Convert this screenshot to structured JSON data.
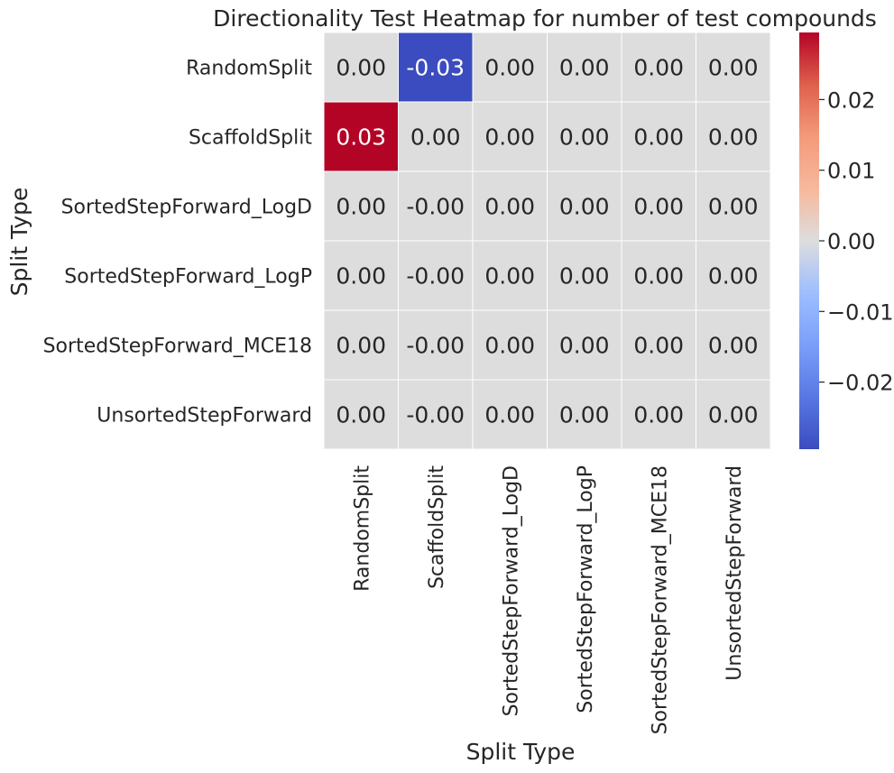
{
  "chart_data": {
    "type": "heatmap",
    "title": "Directionality Test Heatmap for number of test compounds",
    "xlabel": "Split Type",
    "ylabel": "Split Type",
    "row_labels": [
      "RandomSplit",
      "ScaffoldSplit",
      "SortedStepForward_LogD",
      "SortedStepForward_LogP",
      "SortedStepForward_MCE18",
      "UnsortedStepForward"
    ],
    "col_labels": [
      "RandomSplit",
      "ScaffoldSplit",
      "SortedStepForward_LogD",
      "SortedStepForward_LogP",
      "SortedStepForward_MCE18",
      "UnsortedStepForward"
    ],
    "values": [
      [
        0.0,
        -0.03,
        0.0,
        0.0,
        0.0,
        0.0
      ],
      [
        0.03,
        0.0,
        0.0,
        0.0,
        0.0,
        0.0
      ],
      [
        0.0,
        -0.0,
        0.0,
        0.0,
        0.0,
        0.0
      ],
      [
        0.0,
        -0.0,
        0.0,
        0.0,
        0.0,
        0.0
      ],
      [
        0.0,
        -0.0,
        0.0,
        0.0,
        0.0,
        0.0
      ],
      [
        0.0,
        -0.0,
        0.0,
        0.0,
        0.0,
        0.0
      ]
    ],
    "annotations": [
      [
        "0.00",
        "-0.03",
        "0.00",
        "0.00",
        "0.00",
        "0.00"
      ],
      [
        "0.03",
        "0.00",
        "0.00",
        "0.00",
        "0.00",
        "0.00"
      ],
      [
        "0.00",
        "-0.00",
        "0.00",
        "0.00",
        "0.00",
        "0.00"
      ],
      [
        "0.00",
        "-0.00",
        "0.00",
        "0.00",
        "0.00",
        "0.00"
      ],
      [
        "0.00",
        "-0.00",
        "0.00",
        "0.00",
        "0.00",
        "0.00"
      ],
      [
        "0.00",
        "-0.00",
        "0.00",
        "0.00",
        "0.00",
        "0.00"
      ]
    ],
    "colormap": "coolwarm",
    "colorbar": {
      "range": [
        -0.0295,
        0.0295
      ],
      "ticks": [
        0.02,
        0.01,
        0.0,
        -0.01,
        -0.02
      ],
      "tick_labels": [
        "0.02",
        "0.01",
        "0.00",
        "−0.01",
        "−0.02"
      ]
    },
    "colors": {
      "low": "#3b4cc0",
      "mid": "#dddddd",
      "high": "#b40426",
      "grid_lines": "#ffffff"
    }
  }
}
